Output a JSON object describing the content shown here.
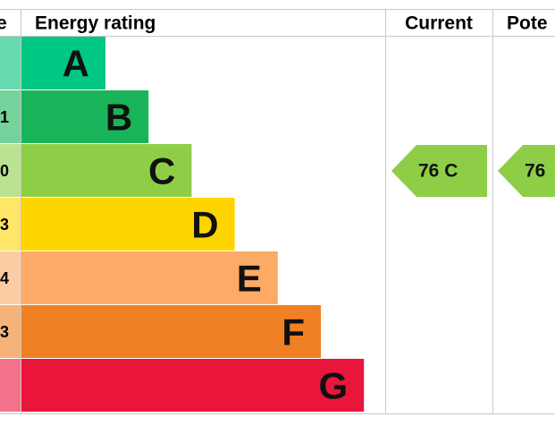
{
  "header": {
    "score": "e",
    "rating": "Energy rating",
    "current": "Current",
    "potential": "Pote"
  },
  "bands": [
    {
      "letter": "A",
      "score": "",
      "color": "#00c781",
      "score_color": "#66d9ae"
    },
    {
      "letter": "B",
      "score": "1",
      "color": "#19b459",
      "score_color": "#75d29b"
    },
    {
      "letter": "C",
      "score": "0",
      "color": "#8dce46",
      "score_color": "#bbe290"
    },
    {
      "letter": "D",
      "score": "3",
      "color": "#ffd500",
      "score_color": "#ffe666"
    },
    {
      "letter": "E",
      "score": "4",
      "color": "#fcaa65",
      "score_color": "#fdcca3"
    },
    {
      "letter": "F",
      "score": "3",
      "color": "#ef8023",
      "score_color": "#f5b37b"
    },
    {
      "letter": "G",
      "score": "",
      "color": "#e9153b",
      "score_color": "#f27389"
    }
  ],
  "current": {
    "text": "76  C",
    "band": 2
  },
  "potential": {
    "text": "76",
    "band": 2
  }
}
